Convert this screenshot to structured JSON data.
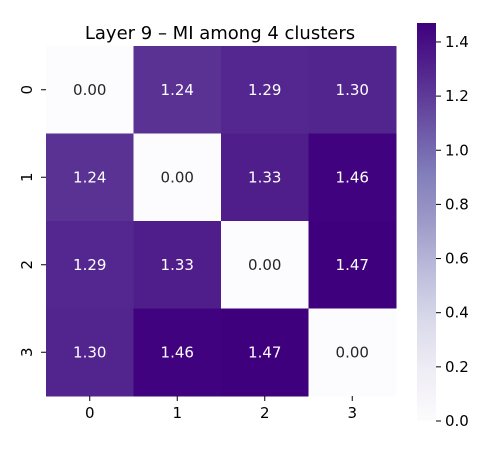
{
  "chart_data": {
    "type": "heatmap",
    "title": "Layer 9 – MI among 4 clusters",
    "x_categories": [
      "0",
      "1",
      "2",
      "3"
    ],
    "y_categories": [
      "0",
      "1",
      "2",
      "3"
    ],
    "values": [
      [
        0.0,
        1.24,
        1.29,
        1.3
      ],
      [
        1.24,
        0.0,
        1.33,
        1.46
      ],
      [
        1.29,
        1.33,
        0.0,
        1.47
      ],
      [
        1.3,
        1.46,
        1.47,
        0.0
      ]
    ],
    "cell_labels": [
      [
        "0.00",
        "1.24",
        "1.29",
        "1.30"
      ],
      [
        "1.24",
        "0.00",
        "1.33",
        "1.46"
      ],
      [
        "1.29",
        "1.33",
        "0.00",
        "1.47"
      ],
      [
        "1.30",
        "1.46",
        "1.47",
        "0.00"
      ]
    ],
    "colormap": "Purples",
    "color_range": [
      0.0,
      1.47
    ],
    "colorbar_ticks": [
      "0.0",
      "0.2",
      "0.4",
      "0.6",
      "0.8",
      "1.0",
      "1.2",
      "1.4"
    ],
    "colorbar_tick_values": [
      0.0,
      0.2,
      0.4,
      0.6,
      0.8,
      1.0,
      1.2,
      1.4
    ],
    "colors": {
      "low": "#fcfbfd",
      "high": "#3f007d"
    }
  }
}
